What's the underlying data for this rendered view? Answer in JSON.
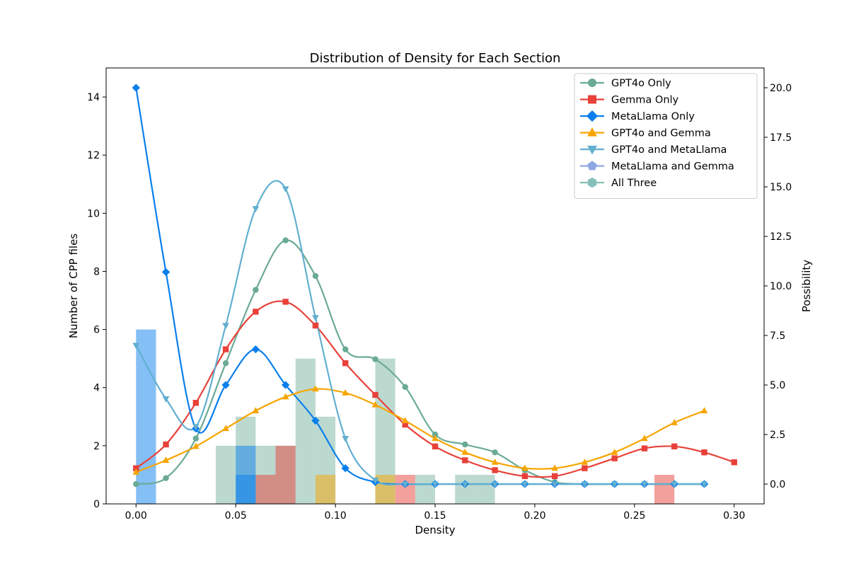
{
  "chart_data": {
    "type": "bar",
    "title": "Distribution of Density for Each Section",
    "xlabel": "Density",
    "ylabel": "Number of CPP files",
    "y2label": "Possibility",
    "xlim": [
      -0.015,
      0.315
    ],
    "ylim": [
      0,
      15
    ],
    "y2lim": [
      -1,
      21
    ],
    "xticks": [
      0.0,
      0.05,
      0.1,
      0.15,
      0.2,
      0.25,
      0.3
    ],
    "xtick_labels": [
      "0.00",
      "0.05",
      "0.10",
      "0.15",
      "0.20",
      "0.25",
      "0.30"
    ],
    "yticks": [
      0,
      2,
      4,
      6,
      8,
      10,
      12,
      14
    ],
    "ytick_labels": [
      "0",
      "2",
      "4",
      "6",
      "8",
      "10",
      "12",
      "14"
    ],
    "y2ticks": [
      0,
      2.5,
      5,
      7.5,
      10,
      12.5,
      15,
      17.5,
      20
    ],
    "y2tick_labels": [
      "0.0",
      "2.5",
      "5.0",
      "7.5",
      "10.0",
      "12.5",
      "15.0",
      "17.5",
      "20.0"
    ],
    "legend_position": "top-right",
    "bin_width": 0.01,
    "series": [
      {
        "name": "GPT4o Only",
        "color": "#6aaa96",
        "marker": "circle",
        "hist": [
          [
            0.04,
            2
          ],
          [
            0.05,
            3
          ],
          [
            0.06,
            2
          ],
          [
            0.07,
            2
          ],
          [
            0.08,
            5
          ],
          [
            0.09,
            3
          ],
          [
            0.12,
            5
          ],
          [
            0.14,
            1
          ],
          [
            0.16,
            1
          ],
          [
            0.17,
            1
          ]
        ],
        "kde_x": [
          0,
          0.015,
          0.03,
          0.045,
          0.06,
          0.075,
          0.09,
          0.105,
          0.12,
          0.135,
          0.15,
          0.165,
          0.18,
          0.195,
          0.21,
          0.225,
          0.24,
          0.255,
          0.27,
          0.285
        ],
        "kde_y": [
          0,
          0.3,
          2.3,
          6.1,
          9.8,
          12.3,
          10.5,
          6.8,
          6.3,
          4.9,
          2.5,
          2.0,
          1.6,
          0.7,
          0.1,
          0,
          0,
          0,
          0,
          0
        ]
      },
      {
        "name": "Gemma Only",
        "color": "#e8413a",
        "marker": "square",
        "hist": [
          [
            0.06,
            1
          ],
          [
            0.07,
            2
          ],
          [
            0.13,
            1
          ],
          [
            0.26,
            1
          ]
        ],
        "kde_x": [
          0,
          0.015,
          0.03,
          0.045,
          0.06,
          0.075,
          0.09,
          0.105,
          0.12,
          0.135,
          0.15,
          0.165,
          0.18,
          0.195,
          0.21,
          0.225,
          0.24,
          0.255,
          0.27,
          0.285,
          0.3
        ],
        "kde_y": [
          0.8,
          2.0,
          4.1,
          6.8,
          8.7,
          9.2,
          8.0,
          6.1,
          4.5,
          3.0,
          1.9,
          1.2,
          0.7,
          0.4,
          0.4,
          0.8,
          1.3,
          1.8,
          1.9,
          1.6,
          1.1
        ]
      },
      {
        "name": "MetaLlama Only",
        "color": "#0a7fec",
        "marker": "diamond",
        "hist": [
          [
            0.0,
            6
          ],
          [
            0.05,
            2
          ],
          [
            0.05,
            1
          ]
        ],
        "kde_x": [
          0,
          0.015,
          0.03,
          0.045,
          0.06,
          0.075,
          0.09,
          0.105,
          0.12,
          0.135,
          0.15,
          0.165,
          0.18,
          0.195,
          0.21,
          0.225,
          0.24,
          0.255,
          0.27,
          0.285
        ],
        "kde_y": [
          20,
          10.7,
          2.8,
          5.0,
          6.8,
          5.0,
          3.2,
          0.8,
          0.1,
          0,
          0,
          0,
          0,
          0,
          0,
          0,
          0,
          0,
          0,
          0
        ]
      },
      {
        "name": "GPT4o and Gemma",
        "color": "#f7a500",
        "marker": "triangle-up",
        "hist": [
          [
            0.09,
            1
          ],
          [
            0.12,
            1
          ]
        ],
        "kde_x": [
          0,
          0.015,
          0.03,
          0.045,
          0.06,
          0.075,
          0.09,
          0.105,
          0.12,
          0.135,
          0.15,
          0.165,
          0.18,
          0.195,
          0.21,
          0.225,
          0.24,
          0.255,
          0.27,
          0.285
        ],
        "kde_y": [
          0.6,
          1.2,
          1.9,
          2.8,
          3.7,
          4.4,
          4.8,
          4.6,
          4.0,
          3.2,
          2.3,
          1.6,
          1.1,
          0.8,
          0.8,
          1.1,
          1.6,
          2.3,
          3.1,
          3.7
        ]
      },
      {
        "name": "GPT4o and MetaLlama",
        "color": "#62afd0",
        "marker": "triangle-down",
        "hist": [],
        "kde_x": [
          0,
          0.015,
          0.03,
          0.045,
          0.06,
          0.075,
          0.09,
          0.105,
          0.12,
          0.135,
          0.15,
          0.165,
          0.18,
          0.195,
          0.21,
          0.225,
          0.24,
          0.255,
          0.27,
          0.285
        ],
        "kde_y": [
          7.0,
          4.3,
          2.9,
          8.0,
          13.9,
          14.9,
          8.4,
          2.3,
          0.2,
          0,
          0,
          0,
          0,
          0,
          0,
          0,
          0,
          0,
          0,
          0
        ]
      },
      {
        "name": "MetaLlama and Gemma",
        "color": "#8fa7e3",
        "marker": "pentagon",
        "hist": [],
        "kde_x": [],
        "kde_y": []
      },
      {
        "name": "All Three",
        "color": "#86c0b8",
        "marker": "hexagon",
        "hist": [],
        "kde_x": [],
        "kde_y": []
      }
    ]
  }
}
